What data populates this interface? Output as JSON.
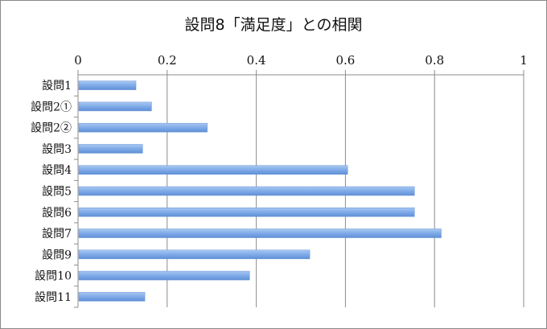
{
  "chart_data": {
    "type": "bar",
    "orientation": "horizontal",
    "title": "設問8「満足度」との相関",
    "xlabel": "",
    "ylabel": "",
    "xlim": [
      0,
      1
    ],
    "ticks": [
      "0",
      "0.2",
      "0.4",
      "0.6",
      "0.8",
      "1"
    ],
    "tick_values": [
      0,
      0.2,
      0.4,
      0.6,
      0.8,
      1
    ],
    "axis_position": "top",
    "grid": true,
    "bar_color": "#7fabe8",
    "categories": [
      "設問1",
      "設問2①",
      "設問2②",
      "設問3",
      "設問4",
      "設問5",
      "設問6",
      "設問7",
      "設問9",
      "設問10",
      "設問11"
    ],
    "values": [
      0.13,
      0.165,
      0.29,
      0.145,
      0.605,
      0.755,
      0.755,
      0.815,
      0.52,
      0.385,
      0.15
    ]
  }
}
